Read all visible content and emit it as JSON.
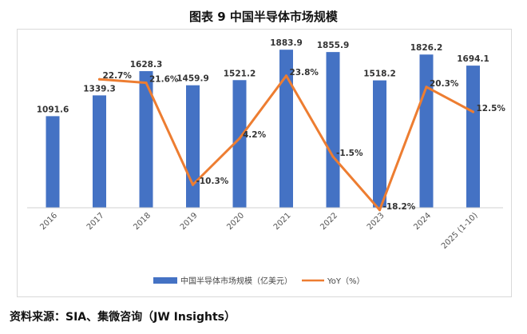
{
  "title": "图表 9  中国半导体市场规模",
  "source": "资料来源：SIA、集微咨询（JW Insights）",
  "colors": {
    "bar": "#4472c4",
    "line": "#ed7d31"
  },
  "chart_data": {
    "type": "bar+line",
    "categories": [
      "2016",
      "2017",
      "2018",
      "2019",
      "2020",
      "2021",
      "2022",
      "2023",
      "2024",
      "2025 (1-10)"
    ],
    "series": [
      {
        "name": "中国半导体市场规模（亿美元）",
        "type": "bar",
        "axis": "left",
        "values": [
          1091.6,
          1339.3,
          1628.3,
          1459.9,
          1521.2,
          1883.9,
          1855.9,
          1518.2,
          1826.2,
          1694.1
        ],
        "labels": [
          "1091.6",
          "1339.3",
          "1628.3",
          "1459.9",
          "1521.2",
          "1883.9",
          "1855.9",
          "1518.2",
          "1826.2",
          "1694.1"
        ]
      },
      {
        "name": "YoY（%）",
        "type": "line",
        "axis": "right",
        "values": [
          null,
          22.7,
          21.6,
          -10.3,
          4.2,
          23.8,
          -1.5,
          -18.2,
          20.3,
          12.5
        ],
        "labels": [
          "",
          "22.7%",
          "21.6%",
          "-10.3%",
          "4.2%",
          "23.8%",
          "-1.5%",
          "-18.2%",
          "20.3%",
          "12.5%"
        ]
      }
    ],
    "ylim_left": [
      0,
      2000
    ],
    "ylim_right": [
      -20,
      30
    ],
    "legend_position": "bottom",
    "grid": false
  }
}
